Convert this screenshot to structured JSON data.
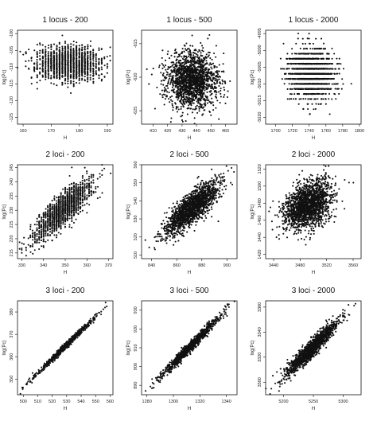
{
  "chart_data": [
    {
      "type": "scatter",
      "title": "1 locus - 200",
      "xlabel": "H",
      "ylabel": "log(Pc)",
      "xlim": [
        158,
        192
      ],
      "ylim": [
        -127,
        -99
      ],
      "xticks": [
        160,
        170,
        180,
        190
      ],
      "yticks": [
        -100,
        -105,
        -110,
        -115,
        -120,
        -125
      ],
      "pattern": "vstripes",
      "npoints": 1500,
      "cloud": {
        "cx": 176,
        "cy": -109,
        "sx": 5.5,
        "sy": 2.6,
        "r": 0,
        "jitter": 0.6,
        "xgrid": 1,
        "ygrid": 0
      }
    },
    {
      "type": "scatter",
      "title": "1 locus - 500",
      "xlabel": "H",
      "ylabel": "log(Pc)",
      "xlim": [
        402,
        468
      ],
      "ylim": [
        -627,
        -613
      ],
      "xticks": [
        410,
        420,
        430,
        440,
        450,
        460
      ],
      "yticks": [
        -615,
        -620,
        -625
      ],
      "pattern": "blob",
      "npoints": 1700,
      "cloud": {
        "cx": 437,
        "cy": -620.5,
        "sx": 9,
        "sy": 2.1,
        "r": 0,
        "jitter": 0,
        "xgrid": 0,
        "ygrid": 0
      }
    },
    {
      "type": "scatter",
      "title": "1 locus - 2000",
      "xlabel": "H",
      "ylabel": "log(Pc)",
      "xlim": [
        1688,
        1802
      ],
      "ylim": [
        -5022,
        -4994
      ],
      "xticks": [
        1700,
        1720,
        1740,
        1760,
        1780,
        1800
      ],
      "yticks": [
        -4995,
        -5000,
        -5005,
        -5010,
        -5015,
        -5020
      ],
      "pattern": "hstripes",
      "npoints": 1700,
      "cloud": {
        "cx": 1742,
        "cy": -5007,
        "sx": 13,
        "sy": 3.5,
        "r": 0,
        "jitter": 0.5,
        "xgrid": 0,
        "ygrid": 1.5
      }
    },
    {
      "type": "scatter",
      "title": "2 loci - 200",
      "xlabel": "H",
      "ylabel": "log(Pc)",
      "xlim": [
        328,
        372
      ],
      "ylim": [
        213,
        246
      ],
      "xticks": [
        330,
        340,
        350,
        360,
        370
      ],
      "yticks": [
        215,
        220,
        225,
        230,
        235,
        240,
        245
      ],
      "pattern": "vstripes",
      "npoints": 1500,
      "cloud": {
        "cx": 349,
        "cy": 230,
        "sx": 7,
        "sy": 5.5,
        "r": 0.85,
        "jitter": 0.7,
        "xgrid": 1,
        "ygrid": 0
      }
    },
    {
      "type": "scatter",
      "title": "2 loci - 500",
      "xlabel": "H",
      "ylabel": "log(Pc)",
      "xlim": [
        832,
        908
      ],
      "ylim": [
        508,
        560
      ],
      "xticks": [
        840,
        860,
        880,
        900
      ],
      "yticks": [
        510,
        520,
        530,
        540,
        550,
        560
      ],
      "pattern": "blob",
      "npoints": 1700,
      "cloud": {
        "cx": 872,
        "cy": 536,
        "sx": 11,
        "sy": 7.5,
        "r": 0.82,
        "jitter": 0,
        "xgrid": 0,
        "ygrid": 0
      }
    },
    {
      "type": "scatter",
      "title": "2 loci - 2000",
      "xlabel": "H",
      "ylabel": "log(Pc)",
      "xlim": [
        3428,
        3572
      ],
      "ylim": [
        1415,
        1525
      ],
      "xticks": [
        3440,
        3480,
        3520,
        3560
      ],
      "yticks": [
        1420,
        1440,
        1460,
        1480,
        1500,
        1520
      ],
      "pattern": "blob",
      "npoints": 1800,
      "cloud": {
        "cx": 3492,
        "cy": 1478,
        "sx": 18,
        "sy": 14,
        "r": 0.35,
        "jitter": 0,
        "xgrid": 0,
        "ygrid": 0
      }
    },
    {
      "type": "scatter",
      "title": "3 loci - 200",
      "xlabel": "H",
      "ylabel": "log(Pc)",
      "xlim": [
        496,
        562
      ],
      "ylim": [
        343,
        385
      ],
      "xticks": [
        500,
        510,
        520,
        530,
        540,
        550,
        560
      ],
      "yticks": [
        350,
        360,
        370,
        380
      ],
      "pattern": "line",
      "npoints": 700,
      "cloud": {
        "cx": 528,
        "cy": 364,
        "sx": 11,
        "sy": 7,
        "r": 0.995,
        "jitter": 0,
        "xgrid": 0,
        "ygrid": 0
      }
    },
    {
      "type": "scatter",
      "title": "3 loci - 500",
      "xlabel": "H",
      "ylabel": "log(Pc)",
      "xlim": [
        1276,
        1348
      ],
      "ylim": [
        885,
        935
      ],
      "xticks": [
        1280,
        1300,
        1320,
        1340
      ],
      "yticks": [
        890,
        900,
        910,
        920,
        930
      ],
      "pattern": "line",
      "npoints": 1000,
      "cloud": {
        "cx": 1312,
        "cy": 910,
        "sx": 11,
        "sy": 8,
        "r": 0.985,
        "jitter": 0,
        "xgrid": 0,
        "ygrid": 0
      }
    },
    {
      "type": "scatter",
      "title": "3 loci - 2000",
      "xlabel": "H",
      "ylabel": "log(Pc)",
      "xlim": [
        5170,
        5330
      ],
      "ylim": [
        3290,
        3365
      ],
      "xticks": [
        5200,
        5250,
        5300
      ],
      "yticks": [
        3300,
        3320,
        3340,
        3360
      ],
      "pattern": "line",
      "npoints": 1400,
      "cloud": {
        "cx": 5247,
        "cy": 3327,
        "sx": 22,
        "sy": 11,
        "r": 0.95,
        "jitter": 0,
        "xgrid": 0,
        "ygrid": 0
      }
    }
  ]
}
